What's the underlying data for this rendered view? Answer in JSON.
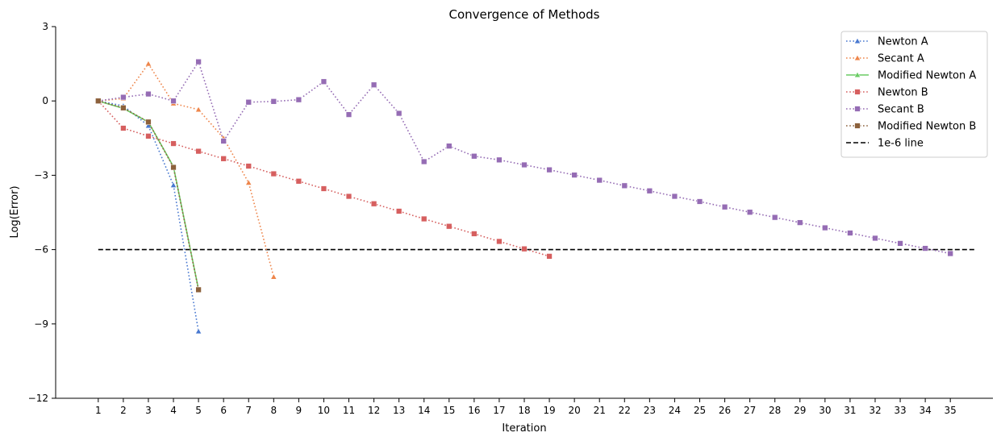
{
  "chart_data": {
    "type": "line",
    "title": "Convergence of Methods",
    "xlabel": "Iteration",
    "ylabel": "Log(Error)",
    "xlim": [
      -0.7,
      36.7
    ],
    "ylim": [
      -12,
      3
    ],
    "xticks": [
      1,
      2,
      3,
      4,
      5,
      6,
      7,
      8,
      9,
      10,
      11,
      12,
      13,
      14,
      15,
      16,
      17,
      18,
      19,
      20,
      21,
      22,
      23,
      24,
      25,
      26,
      27,
      28,
      29,
      30,
      31,
      32,
      33,
      34,
      35
    ],
    "yticks": [
      3,
      0,
      -3,
      -6,
      -9,
      -12
    ],
    "ytick_labels": [
      "3",
      "0",
      "−3",
      "−6",
      "−9",
      "−12"
    ],
    "grid": false,
    "legend_position": "upper right",
    "series": [
      {
        "name": "Newton A",
        "color": "#4878d0",
        "marker": "triangle",
        "linestyle": "dotted",
        "x": [
          1,
          2,
          3,
          4,
          5
        ],
        "y": [
          0,
          -0.2,
          -1.0,
          -3.4,
          -9.3
        ]
      },
      {
        "name": "Secant A",
        "color": "#ee854a",
        "marker": "triangle",
        "linestyle": "dotted",
        "x": [
          1,
          2,
          3,
          4,
          5,
          6,
          7,
          8
        ],
        "y": [
          0,
          0.1,
          1.5,
          -0.1,
          -0.35,
          -1.5,
          -3.3,
          -7.1
        ]
      },
      {
        "name": "Modified Newton A",
        "color": "#6acc64",
        "marker": "triangle",
        "linestyle": "solid",
        "x": [
          1,
          2,
          3,
          4,
          5
        ],
        "y": [
          0,
          -0.3,
          -0.85,
          -2.65,
          -7.6
        ]
      },
      {
        "name": "Newton B",
        "color": "#d65f5f",
        "marker": "square",
        "linestyle": "dotted",
        "x": [
          1,
          2,
          3,
          4,
          5,
          6,
          7,
          8,
          9,
          10,
          11,
          12,
          13,
          14,
          15,
          16,
          17,
          18,
          19
        ],
        "y": [
          0,
          -1.1,
          -1.42,
          -1.72,
          -2.03,
          -2.33,
          -2.63,
          -2.94,
          -3.24,
          -3.54,
          -3.85,
          -4.15,
          -4.45,
          -4.76,
          -5.06,
          -5.36,
          -5.67,
          -5.97,
          -6.27
        ]
      },
      {
        "name": "Secant B",
        "color": "#956cb4",
        "marker": "square",
        "linestyle": "dotted",
        "x": [
          1,
          2,
          3,
          4,
          5,
          6,
          7,
          8,
          9,
          10,
          11,
          12,
          13,
          14,
          15,
          16,
          17,
          18,
          19,
          20,
          21,
          22,
          23,
          24,
          25,
          26,
          27,
          28,
          29,
          30,
          31,
          32,
          33,
          34,
          35
        ],
        "y": [
          0,
          0.15,
          0.28,
          0.0,
          1.58,
          -1.62,
          -0.05,
          -0.02,
          0.05,
          0.78,
          -0.55,
          0.65,
          -0.5,
          -2.45,
          -1.82,
          -2.23,
          -2.38,
          -2.58,
          -2.78,
          -2.99,
          -3.2,
          -3.42,
          -3.63,
          -3.85,
          -4.06,
          -4.28,
          -4.49,
          -4.7,
          -4.91,
          -5.12,
          -5.33,
          -5.54,
          -5.75,
          -5.95,
          -6.16
        ]
      },
      {
        "name": "Modified Newton B",
        "color": "#8c613c",
        "marker": "square",
        "linestyle": "dotted",
        "x": [
          1,
          2,
          3,
          4,
          5
        ],
        "y": [
          0,
          -0.28,
          -0.85,
          -2.68,
          -7.62
        ]
      }
    ],
    "reference_line": {
      "name": "1e-6 line",
      "color": "#000000",
      "linestyle": "dashed",
      "y": -6,
      "x_range": [
        1,
        36
      ]
    }
  }
}
